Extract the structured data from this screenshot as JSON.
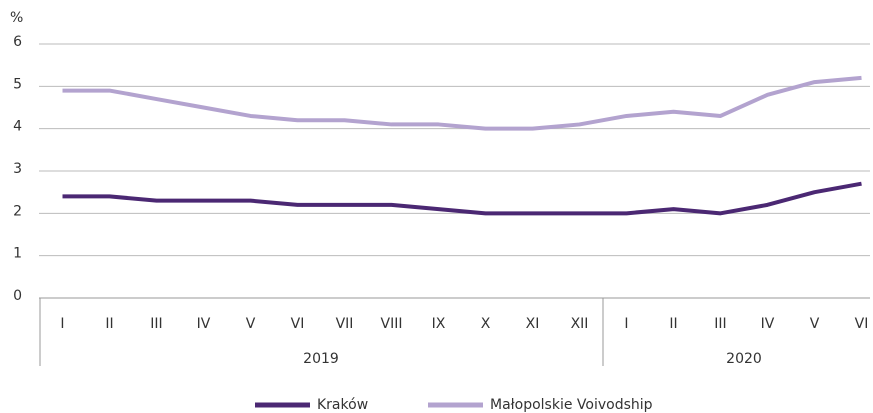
{
  "chart_data": {
    "type": "line",
    "y_label": "%",
    "categories": [
      "I",
      "II",
      "III",
      "IV",
      "V",
      "VI",
      "VII",
      "VIII",
      "IX",
      "X",
      "XI",
      "XII",
      "I",
      "II",
      "III",
      "IV",
      "V",
      "VI"
    ],
    "category_groups": [
      {
        "label": "2019",
        "size": 12
      },
      {
        "label": "2020",
        "size": 6
      }
    ],
    "series": [
      {
        "name": "Kraków",
        "color": "#4b2873",
        "values": [
          2.4,
          2.4,
          2.3,
          2.3,
          2.3,
          2.2,
          2.2,
          2.2,
          2.1,
          2.0,
          2.0,
          2.0,
          2.0,
          2.1,
          2.0,
          2.2,
          2.5,
          2.7
        ]
      },
      {
        "name": "Małopolskie Voivodship",
        "color": "#b3a3cf",
        "values": [
          4.9,
          4.9,
          4.7,
          4.5,
          4.3,
          4.2,
          4.2,
          4.1,
          4.1,
          4.0,
          4.0,
          4.1,
          4.3,
          4.4,
          4.3,
          4.8,
          5.1,
          5.2
        ]
      }
    ],
    "ylim": [
      0,
      6
    ],
    "yticks": [
      0,
      1,
      2,
      3,
      4,
      5,
      6
    ],
    "grid": true,
    "legend": "bottom"
  }
}
